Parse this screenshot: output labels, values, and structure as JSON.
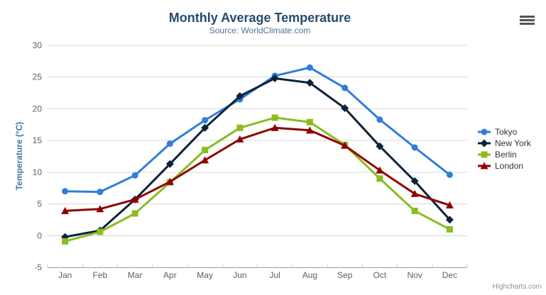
{
  "chart": {
    "credits": "Highcharts.com",
    "context_menu_icon": "hamburger-menu-icon"
  },
  "chart_data": {
    "type": "line",
    "title": "Monthly Average Temperature",
    "subtitle": "Source: WorldClimate.com",
    "categories": [
      "Jan",
      "Feb",
      "Mar",
      "Apr",
      "May",
      "Jun",
      "Jul",
      "Aug",
      "Sep",
      "Oct",
      "Nov",
      "Dec"
    ],
    "xlabel": "",
    "ylabel": "Temperature (°C)",
    "ylim": [
      -5,
      30
    ],
    "ytick_step": 5,
    "grid": true,
    "legend_position": "right",
    "series": [
      {
        "name": "Tokyo",
        "color": "#2f7ed8",
        "marker": "circle",
        "values": [
          7.0,
          6.9,
          9.5,
          14.5,
          18.2,
          21.5,
          25.2,
          26.5,
          23.3,
          18.3,
          13.9,
          9.6
        ]
      },
      {
        "name": "New York",
        "color": "#0d233a",
        "marker": "diamond",
        "values": [
          -0.2,
          0.8,
          5.7,
          11.3,
          17.0,
          22.0,
          24.8,
          24.1,
          20.1,
          14.1,
          8.6,
          2.5
        ]
      },
      {
        "name": "Berlin",
        "color": "#8bbc21",
        "marker": "square",
        "values": [
          -0.9,
          0.6,
          3.5,
          8.4,
          13.5,
          17.0,
          18.6,
          17.9,
          14.3,
          9.0,
          3.9,
          1.0
        ]
      },
      {
        "name": "London",
        "color": "#910000",
        "marker": "triangle",
        "values": [
          3.9,
          4.2,
          5.7,
          8.5,
          11.9,
          15.2,
          17.0,
          16.6,
          14.2,
          10.3,
          6.6,
          4.8
        ]
      }
    ],
    "text_colors": {
      "title": "#274b6d",
      "subtitle": "#4d759e",
      "axis_labels": "#606060",
      "y_axis_title": "#4572a7",
      "legend": "#333333",
      "credits": "#909090"
    }
  }
}
